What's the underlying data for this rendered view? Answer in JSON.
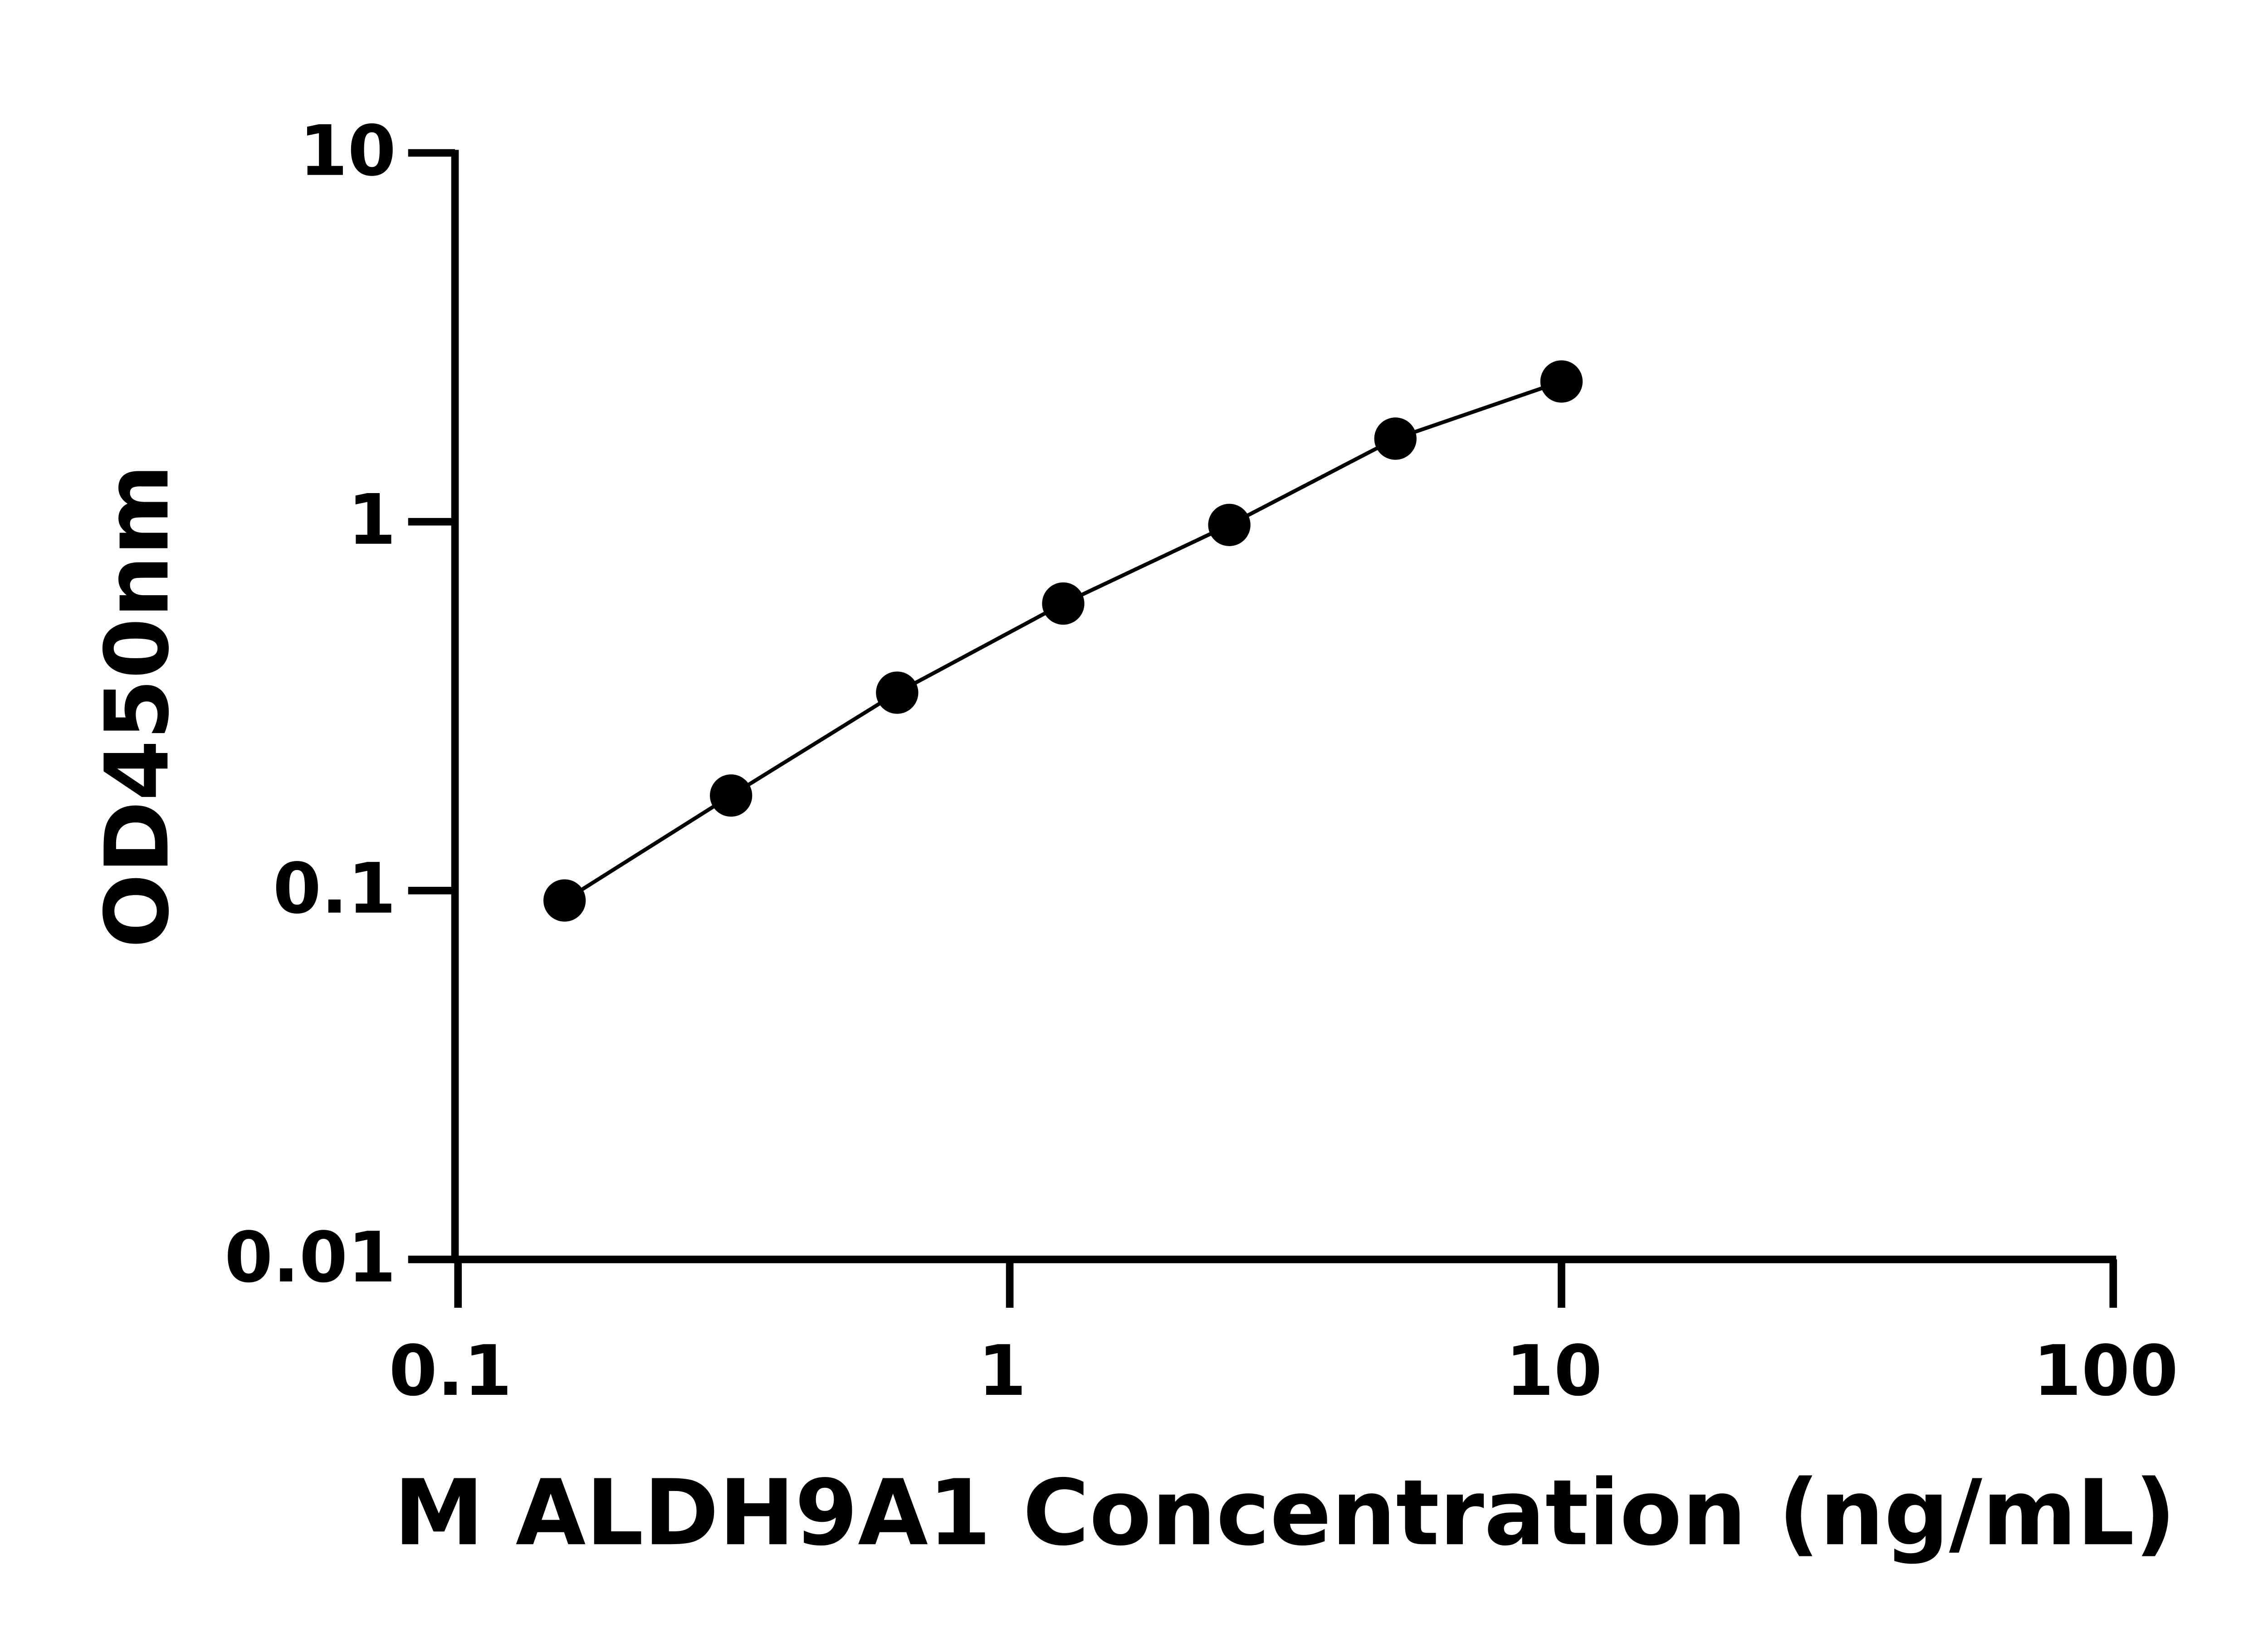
{
  "chart_data": {
    "type": "scatter",
    "xlabel": "M ALDH9A1 Concentration (ng/mL)",
    "ylabel": "OD450nm",
    "x": [
      0.156,
      0.3125,
      0.625,
      1.25,
      2.5,
      5,
      10
    ],
    "series": [
      {
        "color": "#000000",
        "values": [
          0.094,
          0.181,
          0.344,
          0.6,
          0.98,
          1.68,
          2.4
        ]
      }
    ],
    "xscale": "log",
    "yscale": "log",
    "xlim": [
      0.1,
      100
    ],
    "ylim": [
      0.01,
      10
    ],
    "xticks": [
      0.1,
      1,
      10,
      100
    ],
    "yticks": [
      0.01,
      0.1,
      1,
      10
    ],
    "grid": false
  }
}
